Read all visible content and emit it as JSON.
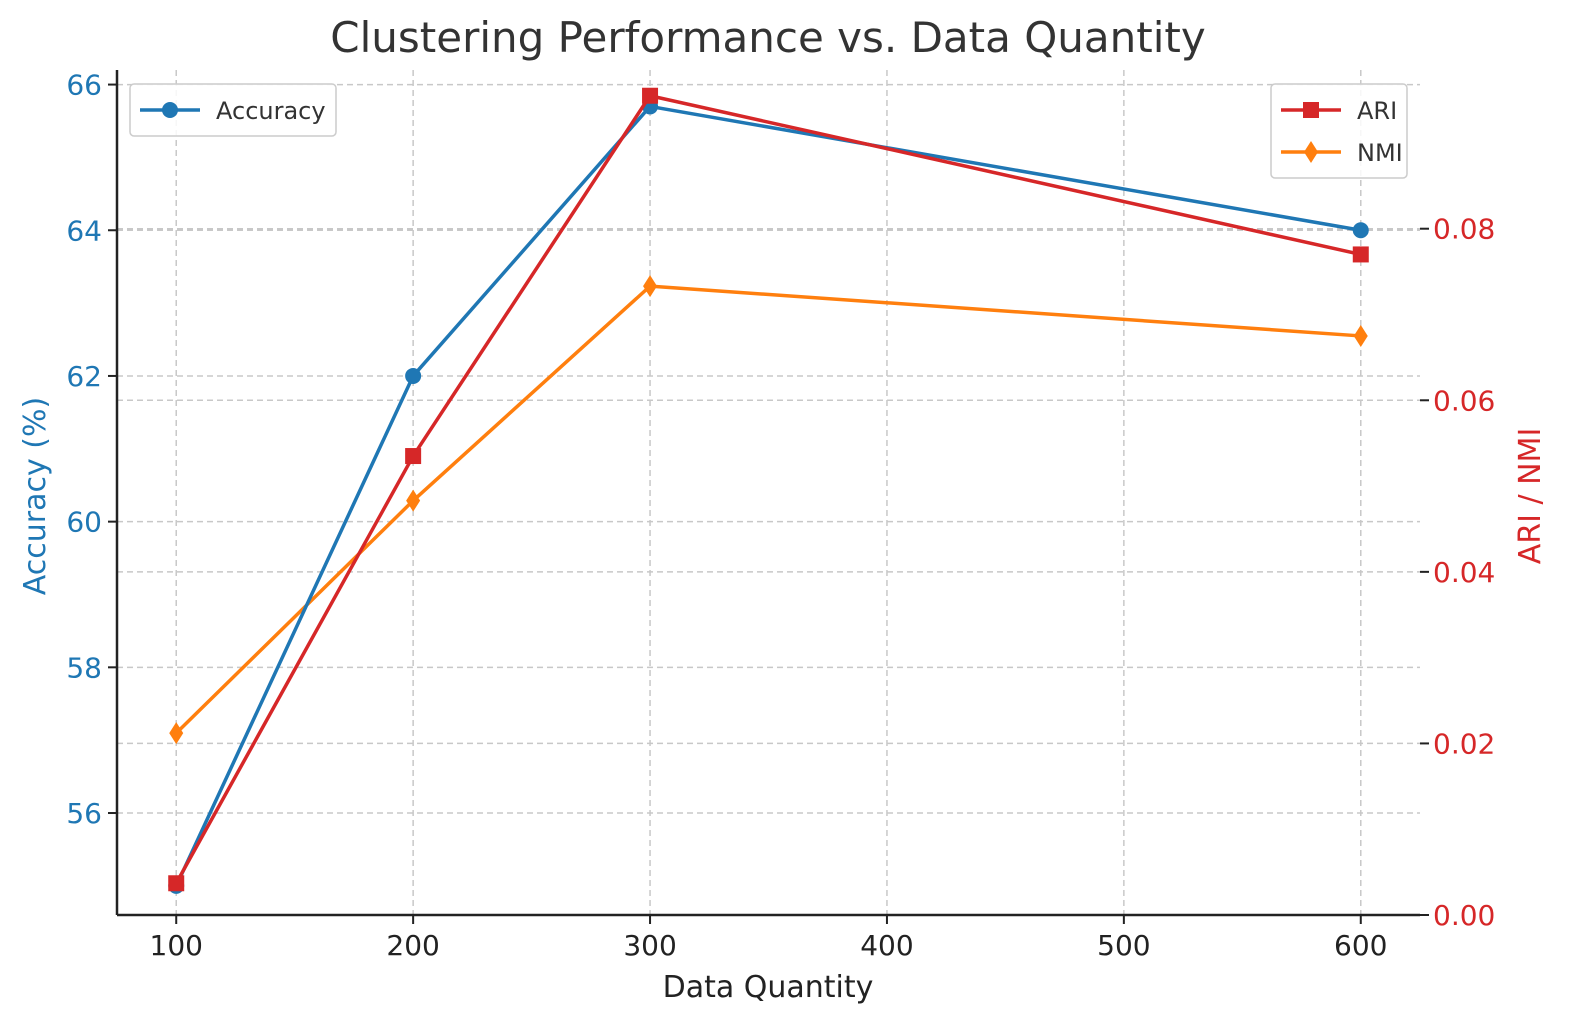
{
  "chart_data": {
    "type": "line",
    "title": "Clustering Performance vs. Data Quantity",
    "xlabel": "Data Quantity",
    "ylabel_left": "Accuracy (%)",
    "ylabel_right": "ARI / NMI",
    "x": [
      100,
      200,
      300,
      600
    ],
    "xlim": [
      75,
      625
    ],
    "xticks": [
      100,
      200,
      300,
      400,
      500,
      600
    ],
    "ylim_left": [
      54.6,
      66.2
    ],
    "yticks_left": [
      56,
      58,
      60,
      62,
      64,
      66
    ],
    "ylim_right": [
      0.0,
      0.0985
    ],
    "yticks_right": [
      "0.00",
      "0.02",
      "0.04",
      "0.06",
      "0.08"
    ],
    "grid": true,
    "series": [
      {
        "name": "Accuracy",
        "axis": "left",
        "color": "#1f77b4",
        "marker": "circle",
        "values": [
          55.0,
          62.0,
          65.7,
          64.0
        ]
      },
      {
        "name": "ARI",
        "axis": "right",
        "color": "#d62728",
        "marker": "square",
        "values": [
          0.0037,
          0.0535,
          0.0955,
          0.077
        ]
      },
      {
        "name": "NMI",
        "axis": "right",
        "color": "#ff7f0e",
        "marker": "diamond",
        "values": [
          0.0212,
          0.0483,
          0.0733,
          0.0675
        ]
      }
    ],
    "legends": {
      "left": [
        "Accuracy"
      ],
      "right": [
        "ARI",
        "NMI"
      ],
      "left_placement": "top-left",
      "right_placement": "top-right"
    }
  }
}
